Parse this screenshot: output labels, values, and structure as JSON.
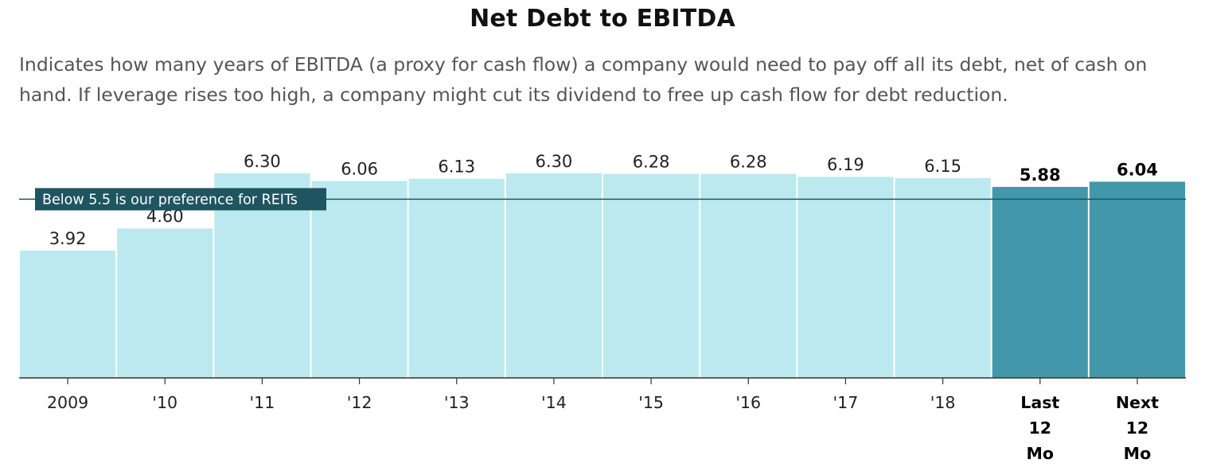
{
  "chart_data": {
    "type": "bar",
    "title": "Net Debt to EBITDA",
    "subtitle": "Indicates how many years of EBITDA (a proxy for cash flow) a company would need to pay off all its debt, net of cash on hand. If leverage rises too high, a company might cut its dividend to free up cash flow for debt reduction.",
    "categories": [
      "2009",
      "'10",
      "'11",
      "'12",
      "'13",
      "'14",
      "'15",
      "'16",
      "'17",
      "'18",
      "Last 12 Mo",
      "Next 12 Mo"
    ],
    "category_lines": [
      [
        "2009"
      ],
      [
        "'10"
      ],
      [
        "'11"
      ],
      [
        "'12"
      ],
      [
        "'13"
      ],
      [
        "'14"
      ],
      [
        "'15"
      ],
      [
        "'16"
      ],
      [
        "'17"
      ],
      [
        "'18"
      ],
      [
        "Last",
        "12",
        "Mo"
      ],
      [
        "Next",
        "12",
        "Mo"
      ]
    ],
    "values": [
      3.92,
      4.6,
      6.3,
      6.06,
      6.13,
      6.3,
      6.28,
      6.28,
      6.19,
      6.15,
      5.88,
      6.04
    ],
    "value_labels": [
      "3.92",
      "4.60",
      "6.30",
      "6.06",
      "6.13",
      "6.30",
      "6.28",
      "6.28",
      "6.19",
      "6.15",
      "5.88",
      "6.04"
    ],
    "highlighted": [
      false,
      false,
      false,
      false,
      false,
      false,
      false,
      false,
      false,
      false,
      true,
      true
    ],
    "ylim": [
      0,
      8.4
    ],
    "reference_line": {
      "value": 5.5,
      "label": "Below 5.5 is our preference for REITs"
    },
    "colors": {
      "bar": "#bce9ef",
      "bar_highlight": "#4298aa",
      "reference": "#1f5560",
      "axis": "#333333"
    },
    "xlabel": "",
    "ylabel": "",
    "grid": false,
    "legend": "none"
  }
}
